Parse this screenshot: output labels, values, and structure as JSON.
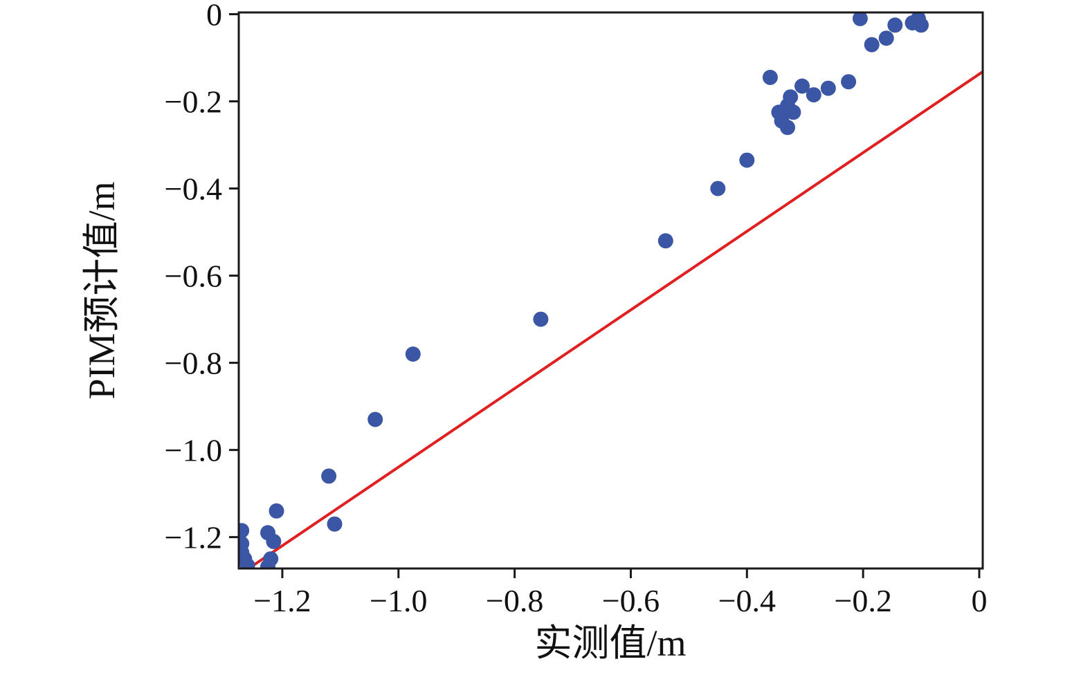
{
  "chart_data": {
    "type": "scatter",
    "title": "",
    "xlabel": "实测值/m",
    "ylabel": "PIM预计值/m",
    "xlim": [
      -1.275,
      0.006
    ],
    "ylim": [
      -1.272,
      0.004
    ],
    "grid": false,
    "legend": "none",
    "background": "#ffffff",
    "axis_color": "#1a1a1a",
    "xticks": {
      "values": [
        -1.2,
        -1.0,
        -0.8,
        -0.6,
        -0.4,
        -0.2,
        0
      ],
      "labels": [
        "−1.2",
        "−1.0",
        "−0.8",
        "−0.6",
        "−0.4",
        "−0.2",
        "0"
      ]
    },
    "yticks": {
      "values": [
        0,
        -0.2,
        -0.4,
        -0.6,
        -0.8,
        -1.0,
        -1.2
      ],
      "labels": [
        "0",
        "−0.2",
        "−0.4",
        "−0.6",
        "−0.8",
        "−1.0",
        "−1.2"
      ]
    },
    "series": [
      {
        "name": "reference-line",
        "kind": "line",
        "color": "#e02020",
        "width": 4,
        "points": [
          [
            -1.258,
            -1.272
          ],
          [
            0.006,
            -0.132
          ]
        ]
      },
      {
        "name": "pim-predictions",
        "kind": "scatter",
        "color": "#3a56a4",
        "marker_radius": 11,
        "points": [
          [
            -1.27,
            -1.185
          ],
          [
            -1.27,
            -1.215
          ],
          [
            -1.27,
            -1.235
          ],
          [
            -1.265,
            -1.25
          ],
          [
            -1.26,
            -1.265
          ],
          [
            -1.225,
            -1.19
          ],
          [
            -1.215,
            -1.21
          ],
          [
            -1.22,
            -1.25
          ],
          [
            -1.225,
            -1.268
          ],
          [
            -1.21,
            -1.14
          ],
          [
            -1.11,
            -1.17
          ],
          [
            -1.12,
            -1.06
          ],
          [
            -1.04,
            -0.93
          ],
          [
            -0.975,
            -0.78
          ],
          [
            -0.755,
            -0.7
          ],
          [
            -0.54,
            -0.52
          ],
          [
            -0.45,
            -0.4
          ],
          [
            -0.4,
            -0.335
          ],
          [
            -0.36,
            -0.145
          ],
          [
            -0.345,
            -0.225
          ],
          [
            -0.34,
            -0.245
          ],
          [
            -0.33,
            -0.21
          ],
          [
            -0.33,
            -0.26
          ],
          [
            -0.325,
            -0.19
          ],
          [
            -0.32,
            -0.225
          ],
          [
            -0.305,
            -0.165
          ],
          [
            -0.285,
            -0.185
          ],
          [
            -0.26,
            -0.17
          ],
          [
            -0.225,
            -0.155
          ],
          [
            -0.205,
            -0.01
          ],
          [
            -0.185,
            -0.07
          ],
          [
            -0.16,
            -0.055
          ],
          [
            -0.145,
            -0.025
          ],
          [
            -0.115,
            -0.02
          ],
          [
            -0.105,
            -0.01
          ],
          [
            -0.1,
            -0.025
          ]
        ]
      }
    ]
  }
}
